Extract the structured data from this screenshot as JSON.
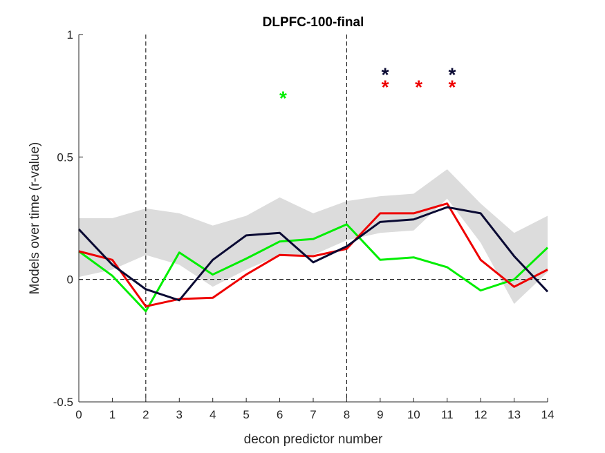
{
  "chart_data": {
    "type": "line",
    "title": "DLPFC-100-final",
    "xlabel": "decon predictor number",
    "ylabel": "Models over time (r-value)",
    "xlim": [
      0,
      14
    ],
    "ylim": [
      -0.5,
      1
    ],
    "x": [
      0,
      1,
      2,
      3,
      4,
      5,
      6,
      7,
      8,
      9,
      10,
      11,
      12,
      13,
      14
    ],
    "x_ticks": [
      "0",
      "1",
      "2",
      "3",
      "4",
      "5",
      "6",
      "7",
      "8",
      "9",
      "10",
      "11",
      "12",
      "13",
      "14"
    ],
    "y_ticks": [
      {
        "value": -0.5,
        "label": "-0.5"
      },
      {
        "value": 0,
        "label": "0"
      },
      {
        "value": 0.5,
        "label": "0.5"
      },
      {
        "value": 1,
        "label": "1"
      }
    ],
    "grid": false,
    "shaded_band": {
      "color": "#dcdcdc",
      "upper": [
        0.25,
        0.25,
        0.29,
        0.27,
        0.22,
        0.26,
        0.335,
        0.27,
        0.32,
        0.34,
        0.35,
        0.45,
        0.31,
        0.19,
        0.26
      ],
      "lower": [
        0.01,
        0.04,
        0.1,
        0.06,
        -0.03,
        0.04,
        0.1,
        0.1,
        0.16,
        0.19,
        0.2,
        0.33,
        0.15,
        -0.1,
        0.03
      ]
    },
    "series": [
      {
        "color": "#00ee00",
        "values": [
          0.115,
          0.015,
          -0.13,
          0.11,
          0.02,
          0.085,
          0.155,
          0.165,
          0.225,
          0.08,
          0.09,
          0.05,
          -0.045,
          0.0,
          0.13
        ]
      },
      {
        "color": "#ee0000",
        "values": [
          0.115,
          0.08,
          -0.11,
          -0.08,
          -0.075,
          0.02,
          0.1,
          0.095,
          0.125,
          0.27,
          0.27,
          0.31,
          0.08,
          -0.03,
          0.04
        ]
      },
      {
        "color": "#0a0a33",
        "values": [
          0.205,
          0.06,
          -0.04,
          -0.085,
          0.08,
          0.18,
          0.19,
          0.07,
          0.135,
          0.235,
          0.245,
          0.295,
          0.27,
          0.095,
          -0.05
        ]
      }
    ],
    "vertical_lines": [
      2,
      8
    ],
    "horizontal_lines": [
      0
    ],
    "significance_markers": [
      {
        "x": 6.1,
        "y": 0.765,
        "symbol": "*",
        "color": "#00ee00"
      },
      {
        "x": 9.15,
        "y": 0.86,
        "symbol": "*",
        "color": "#0a0a33"
      },
      {
        "x": 9.15,
        "y": 0.81,
        "symbol": "*",
        "color": "#ee0000"
      },
      {
        "x": 10.15,
        "y": 0.81,
        "symbol": "*",
        "color": "#ee0000"
      },
      {
        "x": 11.15,
        "y": 0.86,
        "symbol": "*",
        "color": "#0a0a33"
      },
      {
        "x": 11.15,
        "y": 0.81,
        "symbol": "*",
        "color": "#ee0000"
      }
    ]
  }
}
